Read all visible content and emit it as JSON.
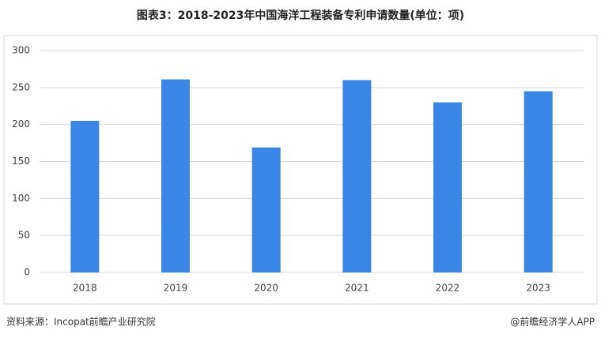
{
  "chart_data": {
    "type": "bar",
    "title": "图表3：2018-2023年中国海洋工程装备专利申请数量(单位：项)",
    "categories": [
      "2018",
      "2019",
      "2020",
      "2021",
      "2022",
      "2023"
    ],
    "values": [
      205,
      261,
      169,
      260,
      230,
      245
    ],
    "color": "#3a86e6",
    "ylim": [
      0,
      300
    ],
    "yticks": [
      0,
      50,
      100,
      150,
      200,
      250,
      300
    ],
    "grid": true,
    "source": "资料来源：Incopat前瞻产业研究院",
    "credit": "@前瞻经济学人APP"
  }
}
